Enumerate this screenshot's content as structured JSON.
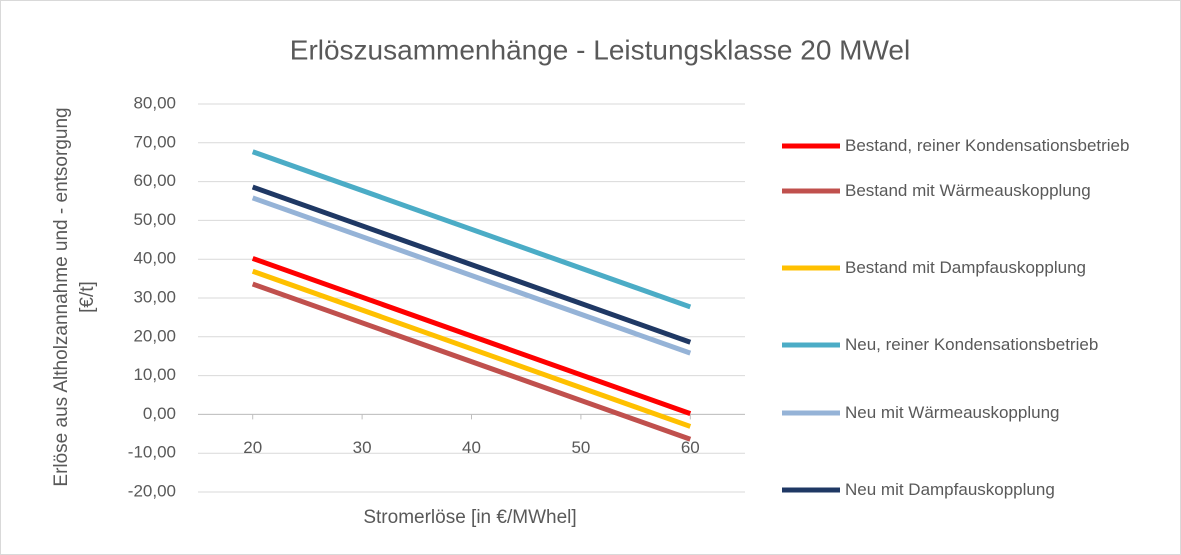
{
  "chart_data": {
    "type": "line",
    "title": "Erlöszusammenhänge - Leistungsklasse 20 MWel",
    "x_label": "Stromerlöse [in €/MWhel]",
    "y_label": "Erlöse aus Altholzannahme und - entsorgung [€/t]",
    "x": [
      20,
      60
    ],
    "xlim": [
      15,
      65
    ],
    "xticks": [
      20,
      30,
      40,
      50,
      60
    ],
    "ylim": [
      -20,
      80
    ],
    "yticks": [
      {
        "value": -20,
        "label": "-20,00"
      },
      {
        "value": -10,
        "label": "-10,00"
      },
      {
        "value": 0,
        "label": "0,00"
      },
      {
        "value": 10,
        "label": "10,00"
      },
      {
        "value": 20,
        "label": "20,00"
      },
      {
        "value": 30,
        "label": "30,00"
      },
      {
        "value": 40,
        "label": "40,00"
      },
      {
        "value": 50,
        "label": "50,00"
      },
      {
        "value": 60,
        "label": "60,00"
      },
      {
        "value": 70,
        "label": "70,00"
      },
      {
        "value": 80,
        "label": "80,00"
      }
    ],
    "grid": true,
    "legend": "right",
    "series": [
      {
        "name": "Bestand, reiner Kondensationsbetrieb",
        "color": "#ff0000",
        "values": [
          40.2,
          0.2
        ]
      },
      {
        "name": "Bestand mit Wärmeauskopplung",
        "color": "#c0504d",
        "values": [
          33.6,
          -6.4
        ]
      },
      {
        "name": "Bestand mit Dampfauskopplung",
        "color": "#ffc000",
        "values": [
          36.9,
          -3.1
        ]
      },
      {
        "name": "Neu, reiner Kondensationsbetrieb",
        "color": "#4bacc6",
        "values": [
          67.7,
          27.7
        ]
      },
      {
        "name": "Neu mit Wärmeauskopplung",
        "color": "#95b3d7",
        "values": [
          55.8,
          15.8
        ]
      },
      {
        "name": "Neu mit Dampfauskopplung",
        "color": "#1f3864",
        "values": [
          58.6,
          18.6
        ]
      }
    ]
  }
}
